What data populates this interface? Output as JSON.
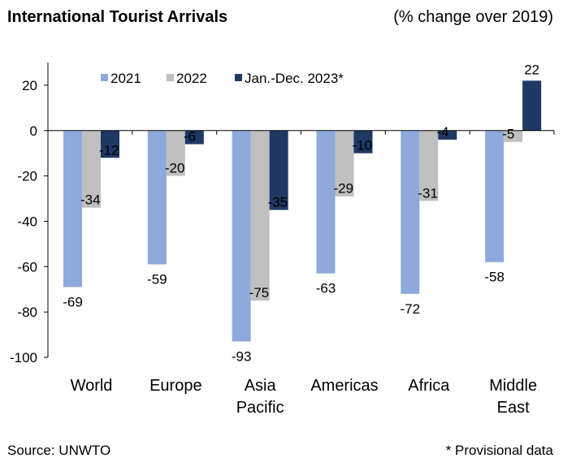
{
  "header": {
    "title": "International Tourist Arrivals",
    "subtitle": "(% change over 2019)"
  },
  "footer": {
    "source": "Source: UNWTO",
    "note": "* Provisional data"
  },
  "chart_data": {
    "type": "bar",
    "title": "International Tourist Arrivals",
    "subtitle": "(% change over 2019)",
    "categories": [
      [
        "World"
      ],
      [
        "Europe"
      ],
      [
        "Asia",
        "Pacific"
      ],
      [
        "Americas"
      ],
      [
        "Africa"
      ],
      [
        "Middle",
        "East"
      ]
    ],
    "series": [
      {
        "name": "2021",
        "color": "#8EA9DB",
        "values": [
          -69,
          -59,
          -93,
          -63,
          -72,
          -58
        ]
      },
      {
        "name": "2022",
        "color": "#BFBFBF",
        "values": [
          -34,
          -20,
          -75,
          -29,
          -31,
          -5
        ]
      },
      {
        "name": "Jan.-Dec. 2023*",
        "color": "#1F3864",
        "values": [
          -12,
          -6,
          -35,
          -10,
          -4,
          22
        ]
      }
    ],
    "ylim": [
      -100,
      30
    ],
    "yticks": [
      20,
      0,
      -20,
      -40,
      -60,
      -80,
      -100
    ],
    "grid": false,
    "legend": "top-left",
    "xlabel": "",
    "ylabel": ""
  }
}
